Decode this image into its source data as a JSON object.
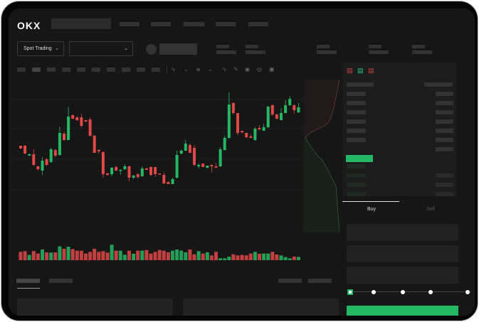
{
  "header": {
    "logo": "OKX"
  },
  "controls": {
    "market_type": "Spot Trading",
    "pair_selector": ""
  },
  "trade_form": {
    "tabs": [
      "Buy",
      "Sell"
    ],
    "active_tab": "Buy",
    "slider_percent": 0
  },
  "colors": {
    "up": "#25b864",
    "down": "#e04848",
    "background": "#161616"
  },
  "chart_data": {
    "type": "candlestick",
    "note_units": "relative",
    "candles": [
      [
        167,
        163,
        167,
        163
      ],
      [
        167,
        156,
        168,
        155
      ],
      [
        153,
        155,
        156,
        153
      ],
      [
        155,
        140,
        162,
        138
      ],
      [
        138,
        134,
        139,
        132
      ],
      [
        132,
        146,
        151,
        126
      ],
      [
        148,
        140,
        150,
        138
      ],
      [
        144,
        162,
        164,
        143
      ],
      [
        161,
        153,
        162,
        151
      ],
      [
        154,
        185,
        194,
        153
      ],
      [
        184,
        175,
        187,
        174
      ],
      [
        175,
        208,
        222,
        175
      ],
      [
        210,
        205,
        211,
        204
      ],
      [
        207,
        203,
        208,
        202
      ],
      [
        207,
        195,
        212,
        193
      ],
      [
        203,
        201,
        203,
        200
      ],
      [
        204,
        181,
        207,
        180
      ],
      [
        181,
        157,
        182,
        157
      ],
      [
        161,
        159,
        162,
        156
      ],
      [
        158,
        127,
        159,
        122
      ],
      [
        128,
        126,
        129,
        125
      ],
      [
        127,
        136,
        137,
        124
      ],
      [
        137,
        132,
        139,
        131
      ],
      [
        132,
        133,
        134,
        126
      ],
      [
        134,
        138,
        141,
        133
      ],
      [
        138,
        122,
        139,
        117
      ],
      [
        122,
        125,
        126,
        120
      ],
      [
        127,
        123,
        128,
        121
      ],
      [
        124,
        135,
        138,
        123
      ],
      [
        135,
        133,
        136,
        133
      ],
      [
        137,
        126,
        138,
        124
      ],
      [
        137,
        127,
        137,
        123
      ],
      [
        128,
        127,
        128,
        126
      ],
      [
        126,
        114,
        129,
        113
      ],
      [
        116,
        113,
        117,
        113
      ],
      [
        113,
        120,
        122,
        113
      ],
      [
        122,
        154,
        160,
        121
      ],
      [
        156,
        160,
        162,
        155
      ],
      [
        160,
        170,
        175,
        159
      ],
      [
        168,
        157,
        170,
        157
      ],
      [
        164,
        140,
        168,
        138
      ],
      [
        138,
        140,
        142,
        135
      ],
      [
        142,
        137,
        142,
        137
      ],
      [
        136,
        139,
        139,
        135
      ],
      [
        140,
        138,
        141,
        129
      ],
      [
        138,
        136,
        143,
        136
      ],
      [
        138,
        162,
        165,
        137
      ],
      [
        161,
        178,
        181,
        160
      ],
      [
        178,
        225,
        242,
        177
      ],
      [
        227,
        213,
        228,
        211
      ],
      [
        213,
        185,
        213,
        182
      ],
      [
        188,
        186,
        188,
        184
      ],
      [
        185,
        179,
        185,
        178
      ],
      [
        180,
        178,
        183,
        178
      ],
      [
        175,
        191,
        193,
        174
      ],
      [
        192,
        190,
        196,
        189
      ],
      [
        188,
        193,
        198,
        188
      ],
      [
        193,
        222,
        223,
        192
      ],
      [
        224,
        211,
        225,
        209
      ],
      [
        211,
        205,
        212,
        204
      ],
      [
        203,
        213,
        220,
        203
      ],
      [
        213,
        224,
        231,
        213
      ],
      [
        224,
        233,
        237,
        223
      ],
      [
        224,
        217,
        225,
        212
      ],
      [
        214,
        221,
        227,
        213
      ]
    ],
    "candle_fields": [
      "open",
      "close",
      "high",
      "low"
    ],
    "volume": [
      35,
      38,
      22,
      38,
      28,
      45,
      33,
      32,
      33,
      58,
      48,
      57,
      47,
      40,
      40,
      28,
      35,
      48,
      35,
      38,
      32,
      65,
      40,
      40,
      23,
      40,
      27,
      40,
      40,
      43,
      28,
      35,
      43,
      40,
      33,
      40,
      45,
      40,
      33,
      45,
      25,
      38,
      28,
      33,
      20,
      35,
      8,
      8,
      15,
      25,
      20,
      22,
      20,
      28,
      35,
      27,
      28,
      28,
      35,
      24,
      20,
      13,
      8,
      15,
      14
    ],
    "grid": true
  }
}
